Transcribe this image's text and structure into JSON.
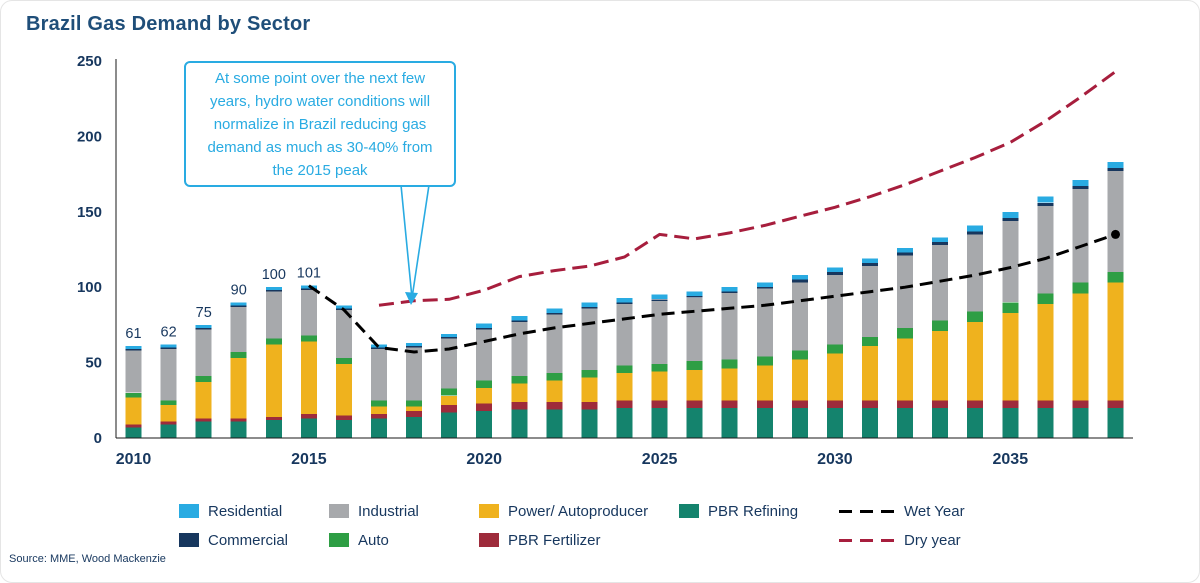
{
  "title": "Brazil Gas Demand by Sector",
  "source": "Source: MME, Wood Mackenzie",
  "annotation": {
    "text": "At some point over the next few years, hydro water conditions will normalize in Brazil reducing gas demand as much as 30-40% from the 2015 peak"
  },
  "colors": {
    "residential": "#29ABE2",
    "commercial": "#17375E",
    "industrial": "#A7A9AC",
    "auto": "#2E9E44",
    "power": "#EFB21E",
    "fertilizer": "#9E2B3B",
    "refining": "#14836D",
    "wet_line": "#000000",
    "dry_line": "#A71E3D",
    "accent_navy": "#17375E",
    "annotation_cyan": "#29ABE2"
  },
  "legend": {
    "items": [
      {
        "label": "Residential",
        "color": "residential",
        "type": "fill"
      },
      {
        "label": "Industrial",
        "color": "industrial",
        "type": "fill"
      },
      {
        "label": "Power/ Autoproducer",
        "color": "power",
        "type": "fill"
      },
      {
        "label": "PBR Refining",
        "color": "refining",
        "type": "fill"
      },
      {
        "label": "Wet Year",
        "color": "wet_line",
        "type": "dash"
      },
      {
        "label": "Commercial",
        "color": "commercial",
        "type": "fill"
      },
      {
        "label": "Auto",
        "color": "auto",
        "type": "fill"
      },
      {
        "label": "PBR Fertilizer",
        "color": "fertilizer",
        "type": "fill"
      },
      {
        "label": "Dry year",
        "color": "dry_line",
        "type": "dash"
      }
    ]
  },
  "chart_data": {
    "type": "bar",
    "stacked": true,
    "title": "Brazil Gas Demand by Sector",
    "grid": false,
    "legend_position": "bottom",
    "ylim": [
      0,
      250
    ],
    "yticks": [
      0,
      50,
      100,
      150,
      200,
      250
    ],
    "xticks": [
      2010,
      2015,
      2020,
      2025,
      2030,
      2035
    ],
    "categories": [
      2010,
      2011,
      2012,
      2013,
      2014,
      2015,
      2016,
      2017,
      2018,
      2019,
      2020,
      2021,
      2022,
      2023,
      2024,
      2025,
      2026,
      2027,
      2028,
      2029,
      2030,
      2031,
      2032,
      2033,
      2034,
      2035,
      2036,
      2037,
      2038
    ],
    "stack_order": "bottom-to-top",
    "series": [
      {
        "name": "PBR Refining",
        "color": "refining",
        "values": [
          7,
          9,
          11,
          11,
          12,
          13,
          12,
          13,
          14,
          17,
          18,
          19,
          19,
          19,
          20,
          20,
          20,
          20,
          20,
          20,
          20,
          20,
          20,
          20,
          20,
          20,
          20,
          20,
          20
        ]
      },
      {
        "name": "PBR Fertilizer",
        "color": "fertilizer",
        "values": [
          2,
          2,
          2,
          2,
          2,
          3,
          3,
          3,
          4,
          5,
          5,
          5,
          5,
          5,
          5,
          5,
          5,
          5,
          5,
          5,
          5,
          5,
          5,
          5,
          5,
          5,
          5,
          5,
          5
        ]
      },
      {
        "name": "Power/ Autoproducer",
        "color": "power",
        "values": [
          18,
          11,
          24,
          40,
          48,
          48,
          34,
          5,
          3,
          6,
          10,
          12,
          14,
          16,
          18,
          19,
          20,
          21,
          23,
          27,
          31,
          36,
          41,
          46,
          52,
          58,
          64,
          71,
          78
        ]
      },
      {
        "name": "Auto",
        "color": "auto",
        "values": [
          3,
          3,
          4,
          4,
          4,
          4,
          4,
          4,
          4,
          5,
          5,
          5,
          5,
          5,
          5,
          5,
          6,
          6,
          6,
          6,
          6,
          6,
          7,
          7,
          7,
          7,
          7,
          7,
          7
        ]
      },
      {
        "name": "Industrial",
        "color": "industrial",
        "values": [
          28,
          34,
          31,
          30,
          31,
          30,
          32,
          34,
          35,
          33,
          34,
          36,
          39,
          41,
          41,
          42,
          42,
          44,
          45,
          45,
          46,
          47,
          48,
          50,
          51,
          54,
          58,
          62,
          67
        ]
      },
      {
        "name": "Commercial",
        "color": "commercial",
        "values": [
          1,
          1,
          1,
          1,
          1,
          1,
          1,
          1,
          1,
          1,
          1,
          1,
          1,
          1,
          1,
          1,
          1,
          1,
          1,
          2,
          2,
          2,
          2,
          2,
          2,
          2,
          2,
          2,
          2
        ]
      },
      {
        "name": "Residential",
        "color": "residential",
        "values": [
          2,
          2,
          2,
          2,
          2,
          2,
          2,
          2,
          2,
          2,
          3,
          3,
          3,
          3,
          3,
          3,
          3,
          3,
          3,
          3,
          3,
          3,
          3,
          3,
          4,
          4,
          4,
          4,
          4
        ]
      }
    ],
    "lines": [
      {
        "name": "Wet Year",
        "color": "wet_line",
        "dash": "13 7",
        "width": 3,
        "end_dot": true,
        "values": [
          null,
          null,
          null,
          null,
          null,
          101,
          85,
          60,
          57,
          59,
          64,
          69,
          73,
          76,
          79,
          82,
          84,
          86,
          88,
          91,
          94,
          97,
          100,
          104,
          108,
          113,
          119,
          127,
          135
        ]
      },
      {
        "name": "Dry year",
        "color": "dry_line",
        "dash": "15 7",
        "width": 3,
        "end_dot": false,
        "values": [
          null,
          null,
          null,
          null,
          null,
          null,
          null,
          88,
          91,
          92,
          98,
          107,
          111,
          114,
          120,
          135,
          132,
          136,
          141,
          147,
          153,
          160,
          168,
          177,
          186,
          196,
          210,
          226,
          243
        ]
      }
    ],
    "bar_labels": [
      {
        "year": 2010,
        "label": "61"
      },
      {
        "year": 2011,
        "label": "62"
      },
      {
        "year": 2012,
        "label": "75"
      },
      {
        "year": 2013,
        "label": "90"
      },
      {
        "year": 2014,
        "label": "100"
      },
      {
        "year": 2015,
        "label": "101"
      }
    ]
  }
}
